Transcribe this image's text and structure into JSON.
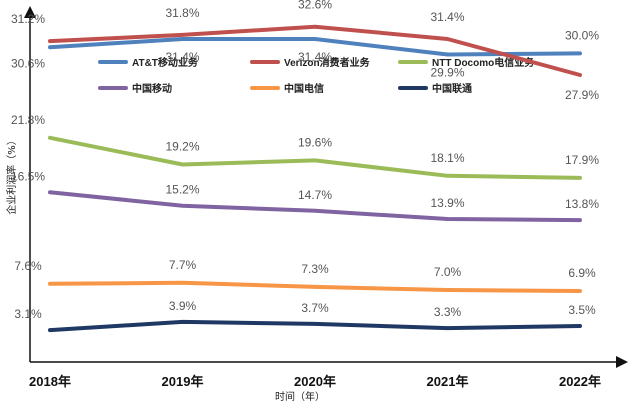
{
  "chart_data": {
    "type": "line",
    "title": "",
    "xlabel": "时间（年）",
    "ylabel": "企业利润率（%）",
    "categories": [
      "2018年",
      "2019年",
      "2020年",
      "2021年",
      "2022年"
    ],
    "ylim": [
      0,
      35
    ],
    "grid": false,
    "legend_position": "top",
    "series": [
      {
        "name": "AT&T移动业务",
        "color": "#4f81bd",
        "values": [
          30.6,
          31.4,
          31.4,
          29.9,
          30.0
        ],
        "labels": [
          "30.6%",
          "31.4%",
          "31.4%",
          "29.9%",
          "30.0%"
        ]
      },
      {
        "name": "Verizon消费者业务",
        "color": "#c0504d",
        "values": [
          31.2,
          31.8,
          32.6,
          31.4,
          27.9
        ],
        "labels": [
          "31.2%",
          "31.8%",
          "32.6%",
          "31.4%",
          "27.9%"
        ]
      },
      {
        "name": "NTT Docomo电信业务",
        "color": "#9bbb59",
        "values": [
          21.8,
          19.2,
          19.6,
          18.1,
          17.9
        ],
        "labels": [
          "21.8%",
          "19.2%",
          "19.6%",
          "18.1%",
          "17.9%"
        ]
      },
      {
        "name": "中国移动",
        "color": "#8064a2",
        "values": [
          16.5,
          15.2,
          14.7,
          13.9,
          13.8
        ],
        "labels": [
          "16.5%",
          "15.2%",
          "14.7%",
          "13.9%",
          "13.8%"
        ]
      },
      {
        "name": "中国电信",
        "color": "#f79646",
        "values": [
          7.6,
          7.7,
          7.3,
          7.0,
          6.9
        ],
        "labels": [
          "7.6%",
          "7.7%",
          "7.3%",
          "7.0%",
          "6.9%"
        ]
      },
      {
        "name": "中国联通",
        "color": "#1f3864",
        "values": [
          3.1,
          3.9,
          3.7,
          3.3,
          3.5
        ],
        "labels": [
          "3.1%",
          "3.9%",
          "3.7%",
          "3.3%",
          "3.5%"
        ]
      }
    ]
  }
}
